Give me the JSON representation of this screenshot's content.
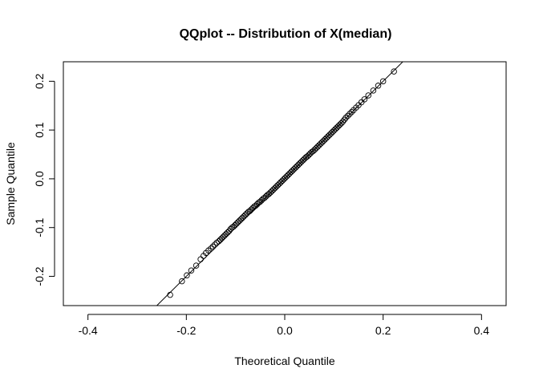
{
  "chart_data": {
    "type": "scatter",
    "title": "QQplot -- Distribution of X(median)",
    "xlabel": "Theoretical Quantile",
    "ylabel": "Sample Quantile",
    "xlim": [
      -0.45,
      0.45
    ],
    "ylim": [
      -0.26,
      0.24
    ],
    "x_ticks": [
      -0.4,
      -0.2,
      0.0,
      0.2,
      0.4
    ],
    "x_tick_labels": [
      "-0.4",
      "-0.2",
      "0.0",
      "0.2",
      "0.4"
    ],
    "y_ticks": [
      -0.2,
      -0.1,
      0.0,
      0.1,
      0.2
    ],
    "y_tick_labels": [
      "-0.2",
      "-0.1",
      "0.0",
      "0.1",
      "0.2"
    ],
    "grid": false,
    "reference_line": {
      "slope": 1.0,
      "intercept": 0.0
    },
    "points": {
      "x": [
        -0.233,
        -0.209,
        -0.199,
        -0.19,
        -0.18,
        -0.171,
        -0.165,
        -0.16,
        -0.155,
        -0.15,
        -0.146,
        -0.142,
        -0.138,
        -0.134,
        -0.131,
        -0.128,
        -0.125,
        -0.122,
        -0.119,
        -0.116,
        -0.113,
        -0.11,
        -0.107,
        -0.104,
        -0.101,
        -0.098,
        -0.095,
        -0.092,
        -0.089,
        -0.086,
        -0.083,
        -0.08,
        -0.077,
        -0.074,
        -0.071,
        -0.068,
        -0.065,
        -0.062,
        -0.059,
        -0.056,
        -0.053,
        -0.05,
        -0.047,
        -0.044,
        -0.041,
        -0.038,
        -0.035,
        -0.032,
        -0.029,
        -0.026,
        -0.023,
        -0.02,
        -0.017,
        -0.014,
        -0.011,
        -0.008,
        -0.005,
        -0.002,
        0.001,
        0.004,
        0.007,
        0.01,
        0.013,
        0.016,
        0.019,
        0.022,
        0.025,
        0.028,
        0.031,
        0.034,
        0.037,
        0.04,
        0.043,
        0.046,
        0.049,
        0.052,
        0.055,
        0.058,
        0.061,
        0.064,
        0.067,
        0.07,
        0.073,
        0.076,
        0.079,
        0.082,
        0.085,
        0.088,
        0.091,
        0.094,
        0.097,
        0.1,
        0.103,
        0.106,
        0.109,
        0.112,
        0.115,
        0.118,
        0.121,
        0.124,
        0.128,
        0.132,
        0.136,
        0.14,
        0.145,
        0.15,
        0.156,
        0.162,
        0.17,
        0.18,
        0.19,
        0.2,
        0.222
      ],
      "y": [
        -0.238,
        -0.21,
        -0.198,
        -0.188,
        -0.178,
        -0.165,
        -0.158,
        -0.152,
        -0.147,
        -0.143,
        -0.139,
        -0.135,
        -0.131,
        -0.128,
        -0.125,
        -0.122,
        -0.119,
        -0.116,
        -0.113,
        -0.11,
        -0.107,
        -0.103,
        -0.1,
        -0.098,
        -0.095,
        -0.092,
        -0.089,
        -0.086,
        -0.083,
        -0.08,
        -0.077,
        -0.074,
        -0.071,
        -0.068,
        -0.066,
        -0.063,
        -0.06,
        -0.057,
        -0.055,
        -0.052,
        -0.049,
        -0.047,
        -0.044,
        -0.041,
        -0.039,
        -0.036,
        -0.033,
        -0.031,
        -0.028,
        -0.025,
        -0.022,
        -0.019,
        -0.016,
        -0.013,
        -0.01,
        -0.007,
        -0.004,
        -0.001,
        0.002,
        0.005,
        0.008,
        0.011,
        0.014,
        0.017,
        0.02,
        0.023,
        0.026,
        0.029,
        0.032,
        0.035,
        0.038,
        0.041,
        0.044,
        0.046,
        0.049,
        0.052,
        0.055,
        0.057,
        0.06,
        0.063,
        0.066,
        0.069,
        0.072,
        0.075,
        0.078,
        0.081,
        0.084,
        0.087,
        0.09,
        0.093,
        0.096,
        0.099,
        0.102,
        0.105,
        0.108,
        0.111,
        0.114,
        0.117,
        0.121,
        0.125,
        0.129,
        0.133,
        0.137,
        0.141,
        0.146,
        0.151,
        0.157,
        0.163,
        0.171,
        0.181,
        0.191,
        0.2,
        0.22
      ]
    }
  }
}
